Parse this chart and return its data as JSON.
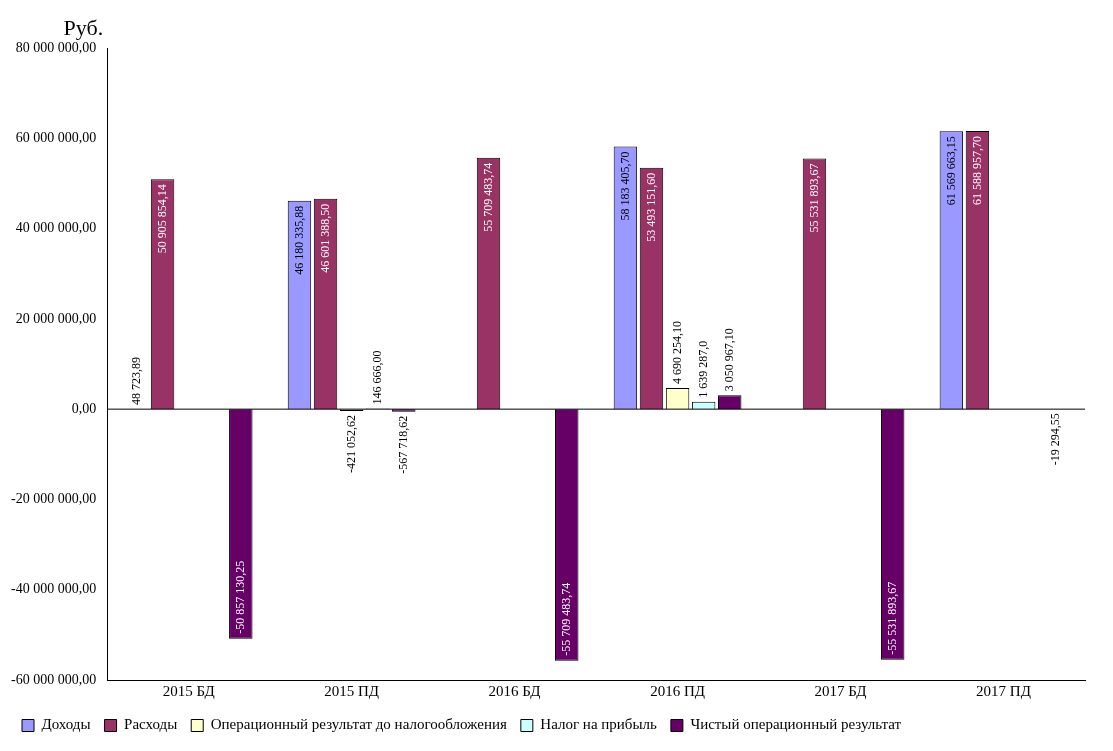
{
  "chart_data": {
    "type": "bar",
    "ylabel": "Руб.",
    "categories": [
      "2015 БД",
      "2015 ПД",
      "2016 БД",
      "2016 ПД",
      "2017 БД",
      "2017 ПД"
    ],
    "series": [
      {
        "name": "Доходы",
        "color": "#9999ff",
        "values": [
          48723.89,
          46180335.88,
          null,
          58183405.7,
          null,
          61569663.15
        ],
        "value_labels": [
          "48 723,89",
          "46 180 335,88",
          null,
          "58 183 405,70",
          null,
          "61 569 663,15"
        ]
      },
      {
        "name": "Расходы",
        "color": "#993366",
        "values": [
          50905854.14,
          46601388.5,
          55709483.74,
          53493151.6,
          55531893.67,
          61588957.7
        ],
        "value_labels": [
          "50 905 854,14",
          "46 601 388,50",
          "55 709 483,74",
          "53 493 151,60",
          "55 531 893,67",
          "61 588 957,70"
        ]
      },
      {
        "name": "Операционный результат до налогообложения",
        "color": "#ffffcc",
        "values": [
          null,
          -421052.62,
          null,
          4690254.1,
          null,
          null
        ],
        "value_labels": [
          null,
          "-421 052,62",
          null,
          "4 690 254,10",
          null,
          null
        ]
      },
      {
        "name": "Налог на прибыль",
        "color": "#ccffff",
        "values": [
          null,
          146666,
          null,
          1639287,
          null,
          null
        ],
        "value_labels": [
          null,
          "146 666,00",
          null,
          "1 639 287,0",
          null,
          null
        ]
      },
      {
        "name": "Чистый операционный результат",
        "color": "#660066",
        "values": [
          -50857130.25,
          -567718.62,
          -55709483.74,
          3050967.1,
          -55531893.67,
          -19294.55
        ],
        "value_labels": [
          "-50 857 130,25",
          "-567 718,62",
          "-55 709 483,74",
          "3 050 967,10",
          "-55 531 893,67",
          "-19 294,55"
        ]
      }
    ],
    "ylim": [
      -60000000,
      80000000
    ],
    "yticks": [
      {
        "value": -60000000,
        "label": "-60 000 000,00"
      },
      {
        "value": -40000000,
        "label": "-40 000 000,00"
      },
      {
        "value": -20000000,
        "label": "-20 000 000,00"
      },
      {
        "value": 0,
        "label": "0,00"
      },
      {
        "value": 20000000,
        "label": "20 000 000,00"
      },
      {
        "value": 40000000,
        "label": "40 000 000,00"
      },
      {
        "value": 60000000,
        "label": "60 000 000,00"
      },
      {
        "value": 80000000,
        "label": "80 000 000,00"
      }
    ],
    "ref_lines": [
      {
        "axis": "y",
        "value": 0,
        "color": "#000000"
      }
    ],
    "grid": false,
    "legend": "bottom"
  }
}
